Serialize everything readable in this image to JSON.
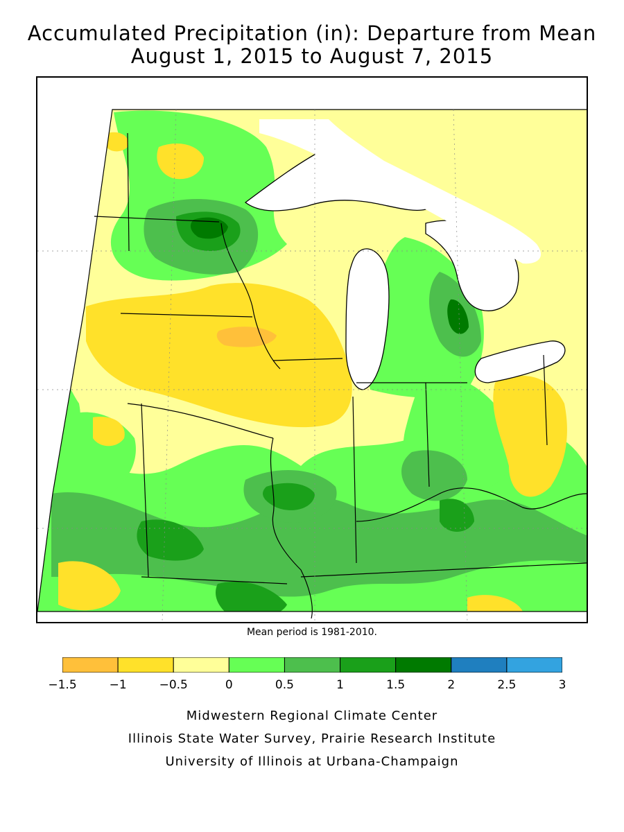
{
  "title": {
    "line1": "Accumulated Precipitation (in): Departure from Mean",
    "line2": "August 1, 2015 to August 7, 2015"
  },
  "note": "Mean period is 1981-2010.",
  "legend": {
    "ticks": [
      "−1.5",
      "−1",
      "−0.5",
      "0",
      "0.5",
      "1",
      "1.5",
      "2",
      "2.5",
      "3"
    ],
    "bins": [
      {
        "from": -1.5,
        "to": -1,
        "color": "#ffc03a"
      },
      {
        "from": -1,
        "to": -0.5,
        "color": "#ffe12a"
      },
      {
        "from": -0.5,
        "to": 0,
        "color": "#ffff99"
      },
      {
        "from": 0,
        "to": 0.5,
        "color": "#66ff55"
      },
      {
        "from": 0.5,
        "to": 1,
        "color": "#4dbf4d"
      },
      {
        "from": 1,
        "to": 1.5,
        "color": "#1aa01a"
      },
      {
        "from": 1.5,
        "to": 2,
        "color": "#007a00"
      },
      {
        "from": 2,
        "to": 2.5,
        "color": "#1f7fbf"
      },
      {
        "from": 2.5,
        "to": 3,
        "color": "#33a3e0"
      }
    ]
  },
  "credits": {
    "line1": "Midwestern Regional Climate Center",
    "line2": "Illinois State Water Survey, Prairie Research Institute",
    "line3": "University of Illinois at Urbana-Champaign"
  },
  "colors": {
    "water": "#ffffff",
    "border": "#000000"
  }
}
